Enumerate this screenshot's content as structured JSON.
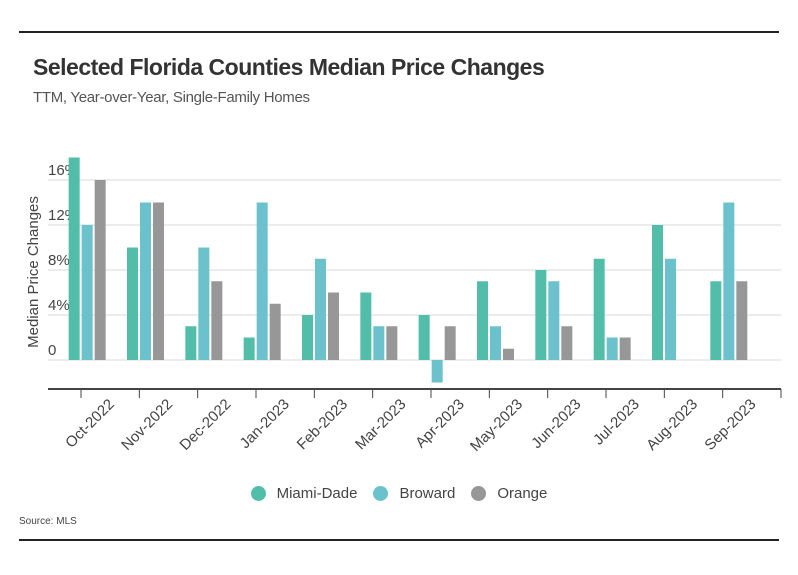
{
  "header": {
    "title": "Selected Florida Counties Median Price Changes",
    "subtitle": "TTM, Year-over-Year, Single-Family Homes"
  },
  "footer": {
    "source": "Source: MLS"
  },
  "chart_data": {
    "type": "bar",
    "title": "Selected Florida Counties Median Price Changes",
    "subtitle": "TTM, Year-over-Year, Single-Family Homes",
    "xlabel": "",
    "ylabel": "Median Price Changes",
    "ylim": [
      -3,
      19
    ],
    "yticks": [
      0,
      4,
      8,
      12,
      16
    ],
    "ytick_labels": [
      "0",
      "4%",
      "8%",
      "12%",
      "16%"
    ],
    "grid": true,
    "legend_position": "bottom-center",
    "categories": [
      "Oct-2022",
      "Nov-2022",
      "Dec-2022",
      "Jan-2023",
      "Feb-2023",
      "Mar-2023",
      "Apr-2023",
      "May-2023",
      "Jun-2023",
      "Jul-2023",
      "Aug-2023",
      "Sep-2023"
    ],
    "series": [
      {
        "name": "Miami-Dade",
        "color": "#52bea9",
        "values": [
          18,
          10,
          3,
          2,
          4,
          6,
          4,
          7,
          8,
          9,
          12,
          7
        ]
      },
      {
        "name": "Broward",
        "color": "#6bc2cc",
        "values": [
          12,
          14,
          10,
          14,
          9,
          3,
          -2,
          3,
          7,
          2,
          9,
          14
        ]
      },
      {
        "name": "Orange",
        "color": "#979797",
        "values": [
          16,
          14,
          7,
          5,
          6,
          3,
          3,
          1,
          3,
          2,
          0,
          7
        ]
      }
    ],
    "source": "Source: MLS"
  }
}
